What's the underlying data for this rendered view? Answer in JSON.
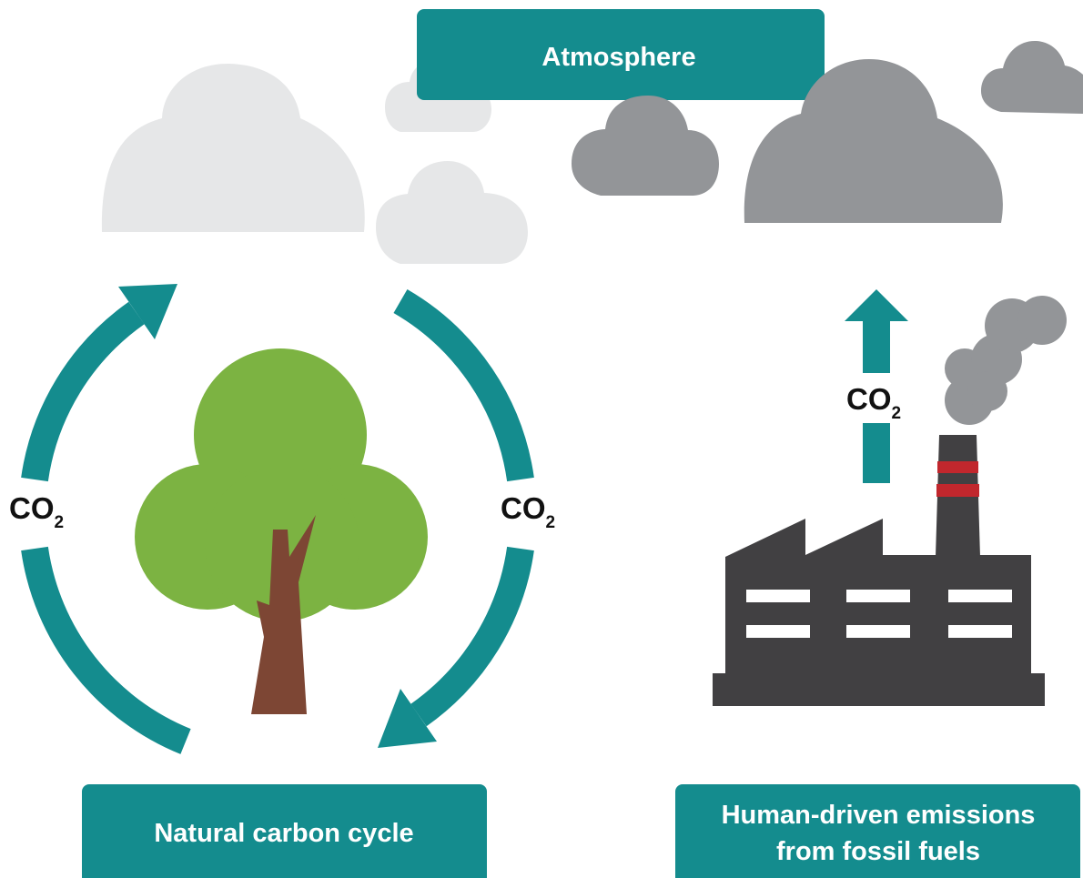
{
  "header": {
    "title": "Atmosphere"
  },
  "panels": [
    {
      "lines": [
        "Natural carbon cycle"
      ]
    },
    {
      "lines": [
        "Human-driven emissions",
        "from fossil fuels"
      ]
    }
  ],
  "co2_labels": [
    {
      "text": "CO",
      "sub": "2"
    },
    {
      "text": "CO",
      "sub": "2"
    },
    {
      "text": "CO",
      "sub": "2"
    }
  ]
}
